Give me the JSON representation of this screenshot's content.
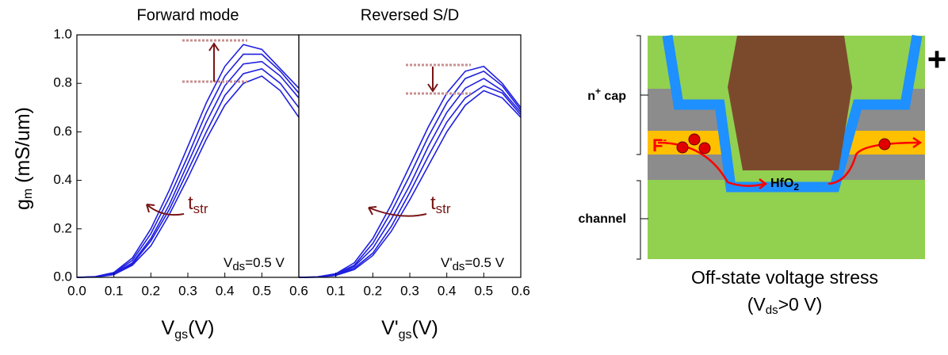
{
  "chart_data": [
    {
      "type": "line",
      "title": "Forward mode",
      "x": [
        0,
        0.05,
        0.1,
        0.15,
        0.2,
        0.25,
        0.3,
        0.35,
        0.4,
        0.45,
        0.5,
        0.55,
        0.6
      ],
      "series": [
        {
          "color": "#1f1fe0",
          "values": [
            0,
            0.003,
            0.02,
            0.08,
            0.2,
            0.36,
            0.54,
            0.72,
            0.87,
            0.96,
            0.94,
            0.86,
            0.78
          ]
        },
        {
          "color": "#1f1fe0",
          "values": [
            0,
            0.002,
            0.017,
            0.07,
            0.18,
            0.33,
            0.5,
            0.68,
            0.83,
            0.92,
            0.92,
            0.85,
            0.76
          ]
        },
        {
          "color": "#1f1fe0",
          "values": [
            0,
            0.002,
            0.015,
            0.06,
            0.16,
            0.3,
            0.47,
            0.64,
            0.79,
            0.88,
            0.89,
            0.83,
            0.74
          ]
        },
        {
          "color": "#1f1fe0",
          "values": [
            0,
            0.002,
            0.013,
            0.055,
            0.15,
            0.28,
            0.44,
            0.6,
            0.75,
            0.84,
            0.86,
            0.8,
            0.7
          ]
        },
        {
          "color": "#1f1fe0",
          "values": [
            0,
            0.001,
            0.011,
            0.05,
            0.13,
            0.26,
            0.41,
            0.57,
            0.71,
            0.8,
            0.83,
            0.77,
            0.66
          ]
        }
      ],
      "xlim": [
        0,
        0.6
      ],
      "xticks": [
        {
          "value": 0,
          "label": "0.0"
        },
        0.1,
        0.2,
        0.3,
        0.4,
        0.5,
        0.6
      ],
      "ylim": [
        0,
        1
      ],
      "yticks": [
        {
          "value": 0,
          "label": "0.0"
        },
        0.2,
        0.4,
        0.6,
        0.8,
        {
          "value": 1,
          "label": "1.0"
        }
      ],
      "ylabel": [
        "g",
        "m",
        " (mS/um)"
      ],
      "xlabel": [
        "V",
        "gs",
        "(V)"
      ],
      "annotation": [
        "t",
        "str"
      ],
      "condition": [
        "V",
        "ds",
        "=0.5 V"
      ]
    },
    {
      "type": "line",
      "title": "Reversed S/D",
      "x": [
        0,
        0.05,
        0.1,
        0.15,
        0.2,
        0.25,
        0.3,
        0.35,
        0.4,
        0.45,
        0.5,
        0.55,
        0.6
      ],
      "series": [
        {
          "color": "#1f1fe0",
          "values": [
            0,
            0.002,
            0.015,
            0.06,
            0.16,
            0.3,
            0.46,
            0.62,
            0.76,
            0.85,
            0.87,
            0.8,
            0.7
          ]
        },
        {
          "color": "#1f1fe0",
          "values": [
            0,
            0.002,
            0.013,
            0.05,
            0.14,
            0.27,
            0.42,
            0.58,
            0.72,
            0.82,
            0.85,
            0.79,
            0.69
          ]
        },
        {
          "color": "#1f1fe0",
          "values": [
            0,
            0.001,
            0.011,
            0.045,
            0.12,
            0.24,
            0.38,
            0.54,
            0.68,
            0.78,
            0.82,
            0.77,
            0.68
          ]
        },
        {
          "color": "#1f1fe0",
          "values": [
            0,
            0.001,
            0.009,
            0.038,
            0.1,
            0.21,
            0.35,
            0.5,
            0.64,
            0.74,
            0.79,
            0.76,
            0.67
          ]
        },
        {
          "color": "#1f1fe0",
          "values": [
            0,
            0.001,
            0.008,
            0.032,
            0.09,
            0.19,
            0.32,
            0.46,
            0.6,
            0.71,
            0.77,
            0.74,
            0.66
          ]
        }
      ],
      "xlim": [
        0,
        0.6
      ],
      "xticks": [
        0.1,
        0.2,
        0.3,
        0.4,
        0.5,
        0.6
      ],
      "ylim": [
        0,
        1
      ],
      "xlabel": [
        "V'",
        "gs",
        "(V)"
      ],
      "annotation": [
        "t",
        "str"
      ],
      "condition": [
        "V'",
        "ds",
        "=0.5 V"
      ]
    }
  ],
  "diagram": {
    "cap_label": [
      "n",
      "+",
      " cap"
    ],
    "channel_label": "channel",
    "ion_label": [
      "F",
      "-"
    ],
    "oxide_label": [
      "HfO",
      "2"
    ],
    "plus_sign": "+",
    "caption": "Off-state voltage stress",
    "condition": [
      "(V",
      "ds",
      ">0 V)"
    ]
  }
}
